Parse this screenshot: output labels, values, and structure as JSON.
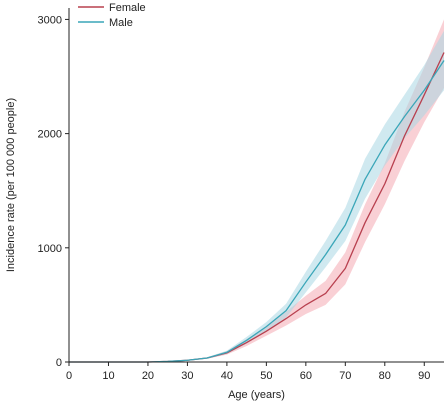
{
  "chart_data": {
    "type": "line",
    "title": "",
    "xlabel": "Age (years)",
    "ylabel": "Incidence rate (per 100 000 people)",
    "xlim": [
      0,
      95
    ],
    "ylim": [
      0,
      3100
    ],
    "xticks": [
      0,
      10,
      20,
      30,
      40,
      50,
      60,
      70,
      80,
      90
    ],
    "yticks": [
      0,
      1000,
      2000,
      3000
    ],
    "xtick_labels": [
      "0",
      "10",
      "20",
      "30",
      "40",
      "50",
      "60",
      "70",
      "80",
      "90"
    ],
    "ytick_labels": [
      "0",
      "1000",
      "2000",
      "3000"
    ],
    "legend_position": "top-left",
    "grid": false,
    "series": [
      {
        "name": "Female",
        "color": "#b8404f",
        "band_color": "#f4a9b2",
        "x": [
          0,
          5,
          10,
          15,
          20,
          25,
          30,
          35,
          40,
          45,
          50,
          55,
          60,
          65,
          70,
          75,
          80,
          85,
          90,
          95
        ],
        "y": [
          0,
          0,
          0,
          0,
          0,
          5,
          15,
          35,
          80,
          170,
          270,
          380,
          500,
          600,
          820,
          1220,
          1560,
          1980,
          2340,
          2710
        ],
        "lower": [
          0,
          0,
          0,
          0,
          0,
          3,
          10,
          28,
          65,
          140,
          230,
          320,
          420,
          500,
          680,
          1050,
          1380,
          1760,
          2100,
          2400
        ],
        "upper": [
          0,
          0,
          0,
          0,
          0,
          8,
          20,
          42,
          95,
          200,
          310,
          440,
          580,
          710,
          960,
          1380,
          1740,
          2190,
          2580,
          3000
        ]
      },
      {
        "name": "Male",
        "color": "#3aa6b8",
        "band_color": "#a9d7e3",
        "x": [
          0,
          5,
          10,
          15,
          20,
          25,
          30,
          35,
          40,
          45,
          50,
          55,
          60,
          65,
          70,
          75,
          80,
          85,
          90,
          95
        ],
        "y": [
          0,
          0,
          0,
          0,
          0,
          5,
          15,
          35,
          85,
          190,
          310,
          450,
          700,
          940,
          1200,
          1600,
          1900,
          2150,
          2380,
          2640
        ],
        "lower": [
          0,
          0,
          0,
          0,
          0,
          3,
          10,
          28,
          70,
          160,
          270,
          390,
          610,
          830,
          1060,
          1430,
          1720,
          1960,
          2160,
          2380
        ],
        "upper": [
          0,
          0,
          0,
          0,
          0,
          8,
          20,
          42,
          100,
          220,
          350,
          510,
          790,
          1060,
          1350,
          1780,
          2080,
          2340,
          2600,
          2900
        ]
      }
    ]
  }
}
